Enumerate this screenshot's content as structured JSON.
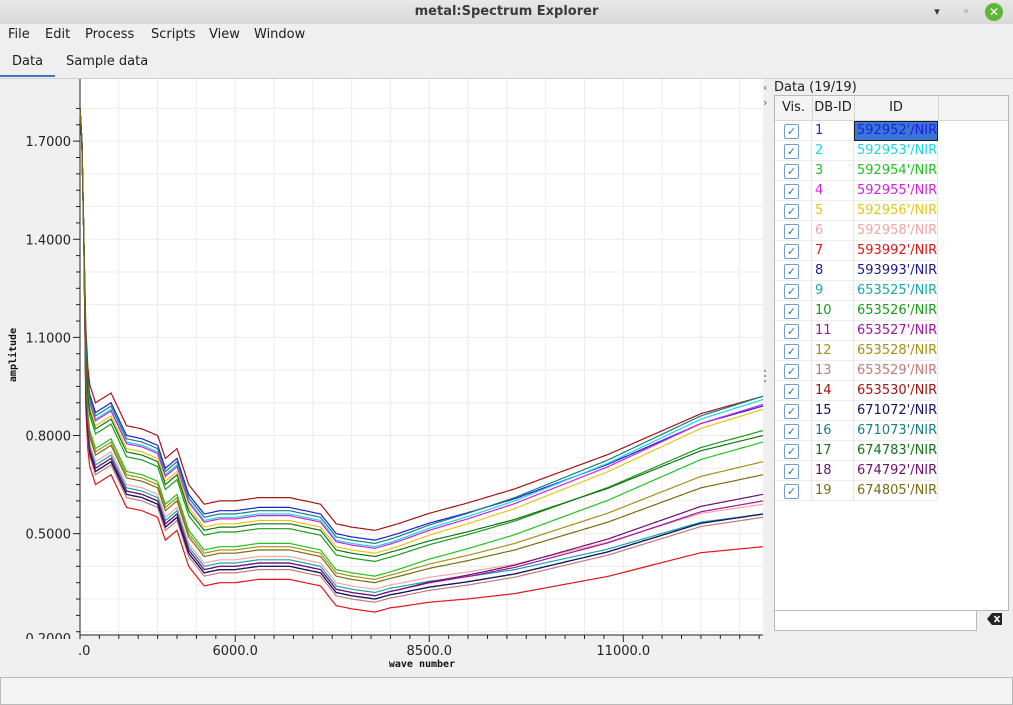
{
  "window": {
    "title": "metal:Spectrum Explorer",
    "min": "▾",
    "max": "◦",
    "close": "✕"
  },
  "menu": [
    "File",
    "Edit",
    "Process",
    "Scripts",
    "View",
    "Window"
  ],
  "tabs": [
    "Data",
    "Sample data"
  ],
  "panel": {
    "title": "Data (19/19)",
    "headers": {
      "vis": "Vis.",
      "dbid": "DB-ID",
      "id": "ID"
    },
    "check": "✓",
    "rows": [
      {
        "dbid": "1",
        "id": "592952'/NIR",
        "color": "#1f1fd8",
        "selected": true
      },
      {
        "dbid": "2",
        "id": "592953'/NIR",
        "color": "#18d8e8"
      },
      {
        "dbid": "3",
        "id": "592954'/NIR",
        "color": "#21c31f"
      },
      {
        "dbid": "4",
        "id": "592955'/NIR",
        "color": "#d622d6"
      },
      {
        "dbid": "5",
        "id": "592956'/NIR",
        "color": "#e0c81a"
      },
      {
        "dbid": "6",
        "id": "592958'/NIR",
        "color": "#f2a6a6"
      },
      {
        "dbid": "7",
        "id": "593992'/NIR",
        "color": "#e01515"
      },
      {
        "dbid": "8",
        "id": "593993'/NIR",
        "color": "#1a1a8c"
      },
      {
        "dbid": "9",
        "id": "653525'/NIR",
        "color": "#17a8a8"
      },
      {
        "dbid": "10",
        "id": "653526'/NIR",
        "color": "#189d18"
      },
      {
        "dbid": "11",
        "id": "653527'/NIR",
        "color": "#a214a2"
      },
      {
        "dbid": "12",
        "id": "653528'/NIR",
        "color": "#a39016"
      },
      {
        "dbid": "13",
        "id": "653529'/NIR",
        "color": "#c47a7a"
      },
      {
        "dbid": "14",
        "id": "653530'/NIR",
        "color": "#a31414"
      },
      {
        "dbid": "15",
        "id": "671072'/NIR",
        "color": "#141463"
      },
      {
        "dbid": "16",
        "id": "671073'/NIR",
        "color": "#168080"
      },
      {
        "dbid": "17",
        "id": "674783'/NIR",
        "color": "#167316"
      },
      {
        "dbid": "18",
        "id": "674792'/NIR",
        "color": "#6d116d"
      },
      {
        "dbid": "19",
        "id": "674805'/NIR",
        "color": "#7a6c12"
      }
    ]
  },
  "chart_data": {
    "type": "line",
    "xlabel": "wave number",
    "ylabel": "amplitude",
    "xlim": [
      4000,
      12800
    ],
    "ylim": [
      0.19,
      1.89
    ],
    "xticks": [
      "6000.0",
      "8500.0",
      "11000.0"
    ],
    "xtick_values": [
      6000,
      8500,
      11000
    ],
    "first_xtick_partial": ".0",
    "yticks": [
      "0.5000",
      "0.8000",
      "1.1000",
      "1.4000",
      "1.7000"
    ],
    "ytick_values": [
      0.5,
      0.8,
      1.1,
      1.4,
      1.7
    ],
    "bottom_partial_tick": "0.2000",
    "grid": true,
    "shape_x": [
      4000,
      4030,
      4080,
      4120,
      4200,
      4400,
      4600,
      4800,
      5000,
      5100,
      5250,
      5400,
      5600,
      5800,
      6000,
      6300,
      6700,
      7100,
      7300,
      7500,
      7800,
      8100,
      8500,
      9000,
      9600,
      10200,
      10800,
      11400,
      12000,
      12800
    ],
    "shape_y": [
      1.8,
      1.68,
      0.96,
      0.86,
      0.8,
      0.83,
      0.73,
      0.72,
      0.7,
      0.63,
      0.66,
      0.55,
      0.49,
      0.5,
      0.5,
      0.51,
      0.51,
      0.49,
      0.43,
      0.42,
      0.41,
      0.43,
      0.46,
      0.49,
      0.53,
      0.58,
      0.63,
      0.69,
      0.75,
      0.8
    ],
    "series": [
      {
        "name": "592952'/NIR",
        "color": "#1f1fd8",
        "offset": 0.07,
        "slope": 0.02
      },
      {
        "name": "592953'/NIR",
        "color": "#18d8e8",
        "offset": 0.05,
        "slope": 0.06
      },
      {
        "name": "592954'/NIR",
        "color": "#21c31f",
        "offset": -0.04,
        "slope": 0.02
      },
      {
        "name": "592955'/NIR",
        "color": "#d622d6",
        "offset": 0.045,
        "slope": 0.05
      },
      {
        "name": "592956'/NIR",
        "color": "#e0c81a",
        "offset": 0.03,
        "slope": 0.05
      },
      {
        "name": "592958'/NIR",
        "color": "#f2a6a6",
        "offset": -0.08,
        "slope": -0.13
      },
      {
        "name": "593992'/NIR",
        "color": "#e01515",
        "offset": -0.15,
        "slope": -0.19
      },
      {
        "name": "593993'/NIR",
        "color": "#1a1a8c",
        "offset": -0.11,
        "slope": -0.13
      },
      {
        "name": "653525'/NIR",
        "color": "#17a8a8",
        "offset": -0.09,
        "slope": -0.15
      },
      {
        "name": "653526'/NIR",
        "color": "#189d18",
        "offset": 0.005,
        "slope": 0.01
      },
      {
        "name": "653527'/NIR",
        "color": "#a214a2",
        "offset": -0.1,
        "slope": -0.1
      },
      {
        "name": "653528'/NIR",
        "color": "#a39016",
        "offset": -0.05,
        "slope": -0.03
      },
      {
        "name": "653529'/NIR",
        "color": "#c47a7a",
        "offset": -0.12,
        "slope": -0.13
      },
      {
        "name": "653530'/NIR",
        "color": "#a31414",
        "offset": 0.1,
        "slope": 0.02
      },
      {
        "name": "671072'/NIR",
        "color": "#141463",
        "offset": -0.11,
        "slope": -0.13
      },
      {
        "name": "671073'/NIR",
        "color": "#168080",
        "offset": 0.06,
        "slope": 0.06
      },
      {
        "name": "674783'/NIR",
        "color": "#167316",
        "offset": 0.02,
        "slope": -0.02
      },
      {
        "name": "674792'/NIR",
        "color": "#6d116d",
        "offset": -0.1,
        "slope": -0.08
      },
      {
        "name": "674805'/NIR",
        "color": "#7a6c12",
        "offset": -0.06,
        "slope": -0.06
      }
    ]
  }
}
